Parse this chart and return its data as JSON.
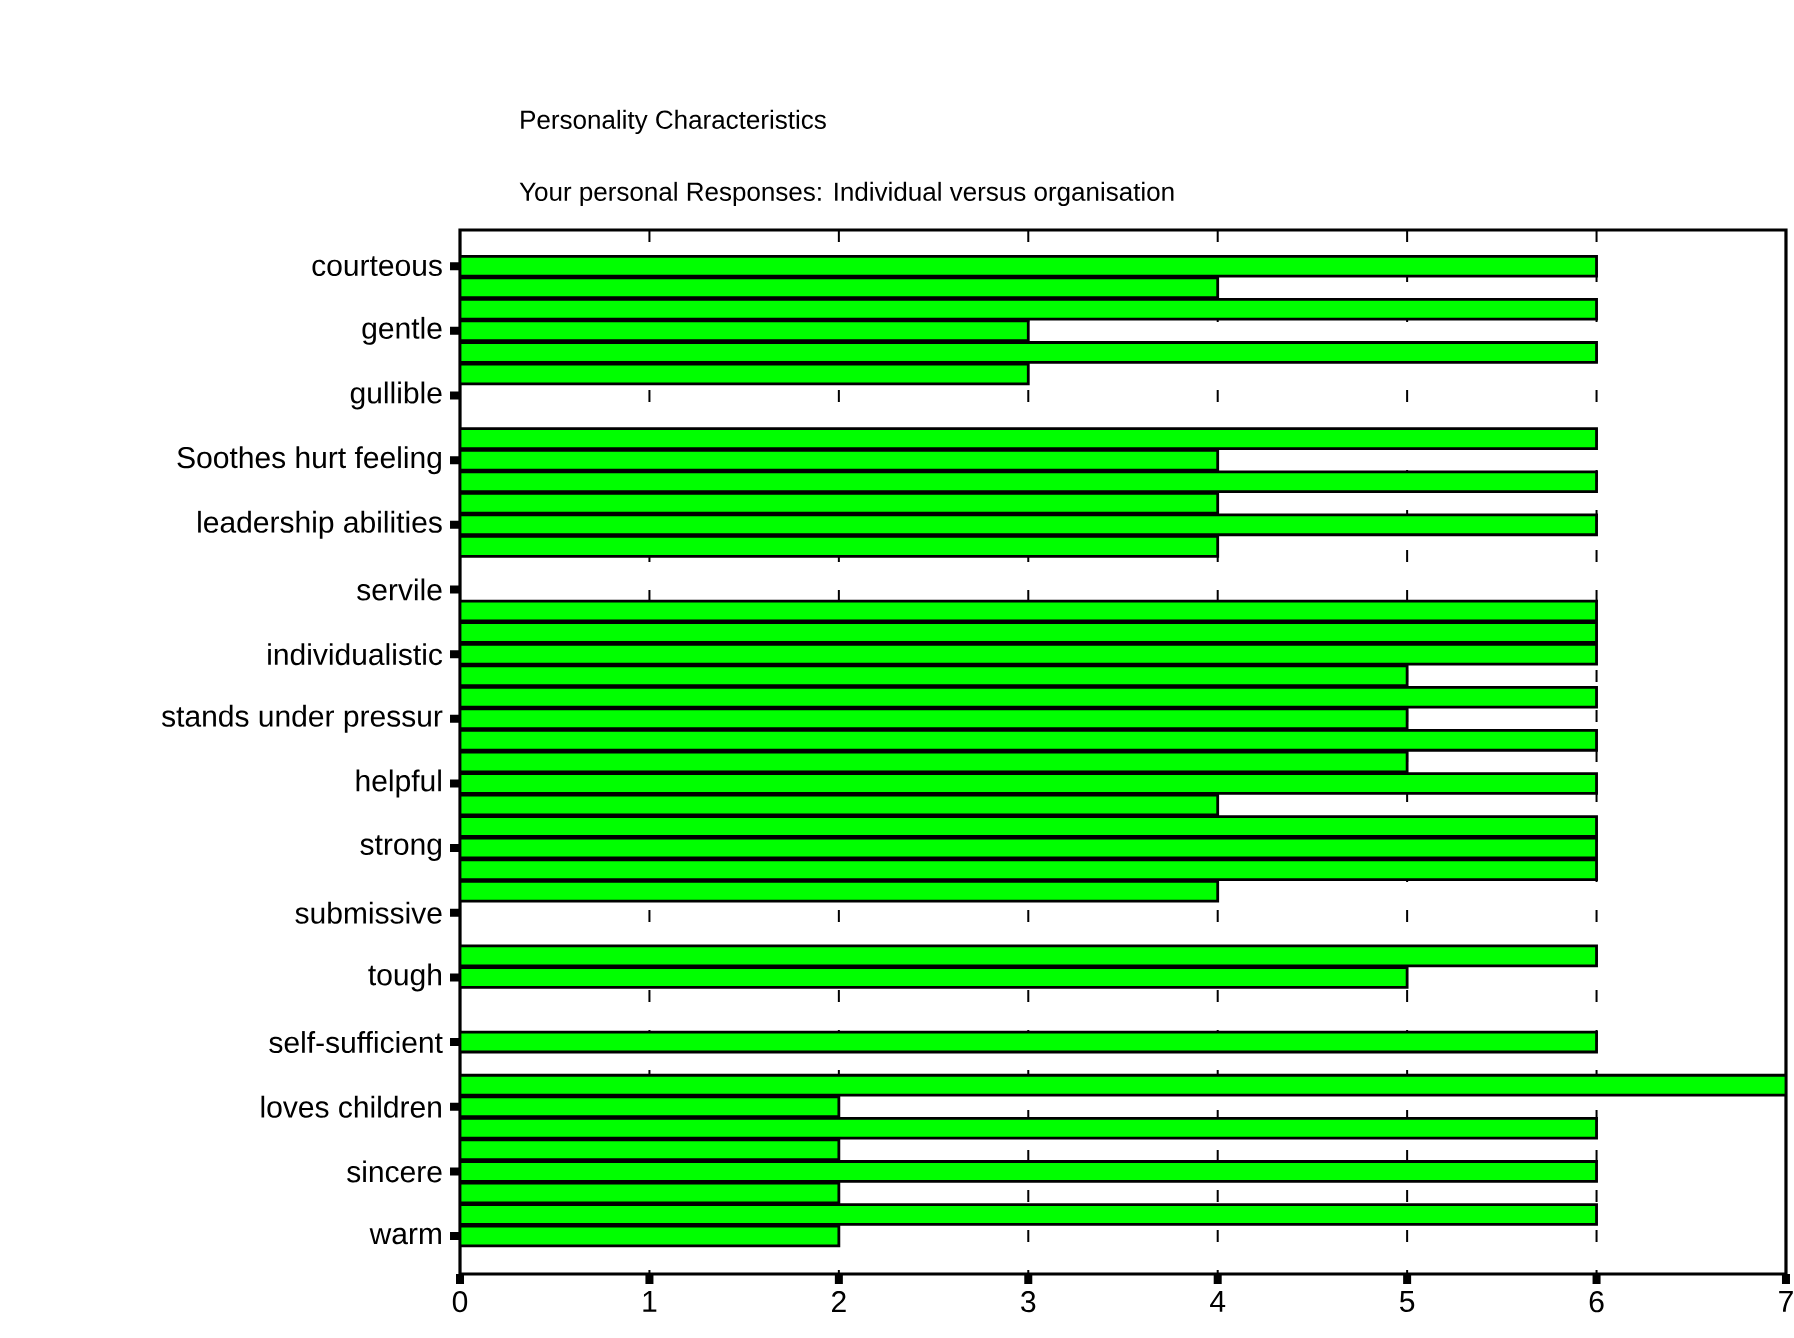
{
  "chart_data": {
    "type": "bar",
    "orientation": "horizontal",
    "title": "Personality Characteristics",
    "subtitle": "Your personal Responses: Individual versus organisation",
    "categories": [
      "courteous",
      null,
      null,
      "gentle",
      null,
      null,
      "gullible",
      null,
      null,
      "Soothes hurt feeling",
      null,
      null,
      "leadership abilities",
      null,
      null,
      "servile",
      null,
      null,
      "individualistic",
      null,
      null,
      "stands under pressur",
      null,
      null,
      "helpful",
      null,
      null,
      "strong",
      null,
      null,
      "submissive",
      null,
      null,
      "tough",
      null,
      null,
      "self-sufficient",
      null,
      null,
      "loves children",
      null,
      null,
      "sincere",
      null,
      null,
      "warm"
    ],
    "values": [
      6,
      4,
      6,
      3,
      6,
      3,
      null,
      null,
      6,
      4,
      6,
      4,
      6,
      4,
      null,
      null,
      6,
      6,
      6,
      5,
      6,
      5,
      6,
      5,
      6,
      4,
      6,
      6,
      6,
      4,
      null,
      null,
      6,
      5,
      null,
      null,
      6,
      null,
      7,
      2,
      6,
      2,
      6,
      2,
      6,
      2
    ],
    "color": "#00ff00",
    "xlim": [
      0,
      7
    ],
    "xticks": [
      0,
      1,
      2,
      3,
      4,
      5,
      6,
      7
    ],
    "grid": "x"
  }
}
